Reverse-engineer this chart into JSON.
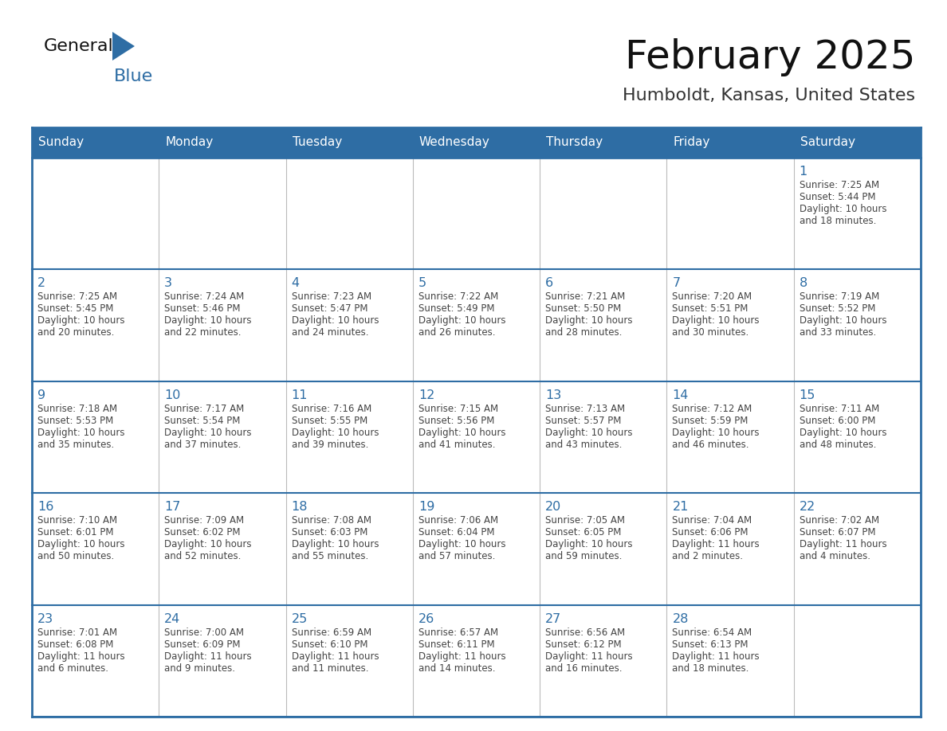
{
  "title": "February 2025",
  "subtitle": "Humboldt, Kansas, United States",
  "header_bg": "#2E6DA4",
  "header_text_color": "#FFFFFF",
  "cell_bg": "#FFFFFF",
  "day_number_color": "#2E6DA4",
  "cell_text_color": "#444444",
  "border_color": "#2E6DA4",
  "line_color_inner": "#CCCCCC",
  "days_of_week": [
    "Sunday",
    "Monday",
    "Tuesday",
    "Wednesday",
    "Thursday",
    "Friday",
    "Saturday"
  ],
  "weeks": [
    [
      {
        "day": null,
        "sunrise": null,
        "sunset": null,
        "daylight_line1": null,
        "daylight_line2": null
      },
      {
        "day": null,
        "sunrise": null,
        "sunset": null,
        "daylight_line1": null,
        "daylight_line2": null
      },
      {
        "day": null,
        "sunrise": null,
        "sunset": null,
        "daylight_line1": null,
        "daylight_line2": null
      },
      {
        "day": null,
        "sunrise": null,
        "sunset": null,
        "daylight_line1": null,
        "daylight_line2": null
      },
      {
        "day": null,
        "sunrise": null,
        "sunset": null,
        "daylight_line1": null,
        "daylight_line2": null
      },
      {
        "day": null,
        "sunrise": null,
        "sunset": null,
        "daylight_line1": null,
        "daylight_line2": null
      },
      {
        "day": "1",
        "sunrise": "Sunrise: 7:25 AM",
        "sunset": "Sunset: 5:44 PM",
        "daylight_line1": "Daylight: 10 hours",
        "daylight_line2": "and 18 minutes."
      }
    ],
    [
      {
        "day": "2",
        "sunrise": "Sunrise: 7:25 AM",
        "sunset": "Sunset: 5:45 PM",
        "daylight_line1": "Daylight: 10 hours",
        "daylight_line2": "and 20 minutes."
      },
      {
        "day": "3",
        "sunrise": "Sunrise: 7:24 AM",
        "sunset": "Sunset: 5:46 PM",
        "daylight_line1": "Daylight: 10 hours",
        "daylight_line2": "and 22 minutes."
      },
      {
        "day": "4",
        "sunrise": "Sunrise: 7:23 AM",
        "sunset": "Sunset: 5:47 PM",
        "daylight_line1": "Daylight: 10 hours",
        "daylight_line2": "and 24 minutes."
      },
      {
        "day": "5",
        "sunrise": "Sunrise: 7:22 AM",
        "sunset": "Sunset: 5:49 PM",
        "daylight_line1": "Daylight: 10 hours",
        "daylight_line2": "and 26 minutes."
      },
      {
        "day": "6",
        "sunrise": "Sunrise: 7:21 AM",
        "sunset": "Sunset: 5:50 PM",
        "daylight_line1": "Daylight: 10 hours",
        "daylight_line2": "and 28 minutes."
      },
      {
        "day": "7",
        "sunrise": "Sunrise: 7:20 AM",
        "sunset": "Sunset: 5:51 PM",
        "daylight_line1": "Daylight: 10 hours",
        "daylight_line2": "and 30 minutes."
      },
      {
        "day": "8",
        "sunrise": "Sunrise: 7:19 AM",
        "sunset": "Sunset: 5:52 PM",
        "daylight_line1": "Daylight: 10 hours",
        "daylight_line2": "and 33 minutes."
      }
    ],
    [
      {
        "day": "9",
        "sunrise": "Sunrise: 7:18 AM",
        "sunset": "Sunset: 5:53 PM",
        "daylight_line1": "Daylight: 10 hours",
        "daylight_line2": "and 35 minutes."
      },
      {
        "day": "10",
        "sunrise": "Sunrise: 7:17 AM",
        "sunset": "Sunset: 5:54 PM",
        "daylight_line1": "Daylight: 10 hours",
        "daylight_line2": "and 37 minutes."
      },
      {
        "day": "11",
        "sunrise": "Sunrise: 7:16 AM",
        "sunset": "Sunset: 5:55 PM",
        "daylight_line1": "Daylight: 10 hours",
        "daylight_line2": "and 39 minutes."
      },
      {
        "day": "12",
        "sunrise": "Sunrise: 7:15 AM",
        "sunset": "Sunset: 5:56 PM",
        "daylight_line1": "Daylight: 10 hours",
        "daylight_line2": "and 41 minutes."
      },
      {
        "day": "13",
        "sunrise": "Sunrise: 7:13 AM",
        "sunset": "Sunset: 5:57 PM",
        "daylight_line1": "Daylight: 10 hours",
        "daylight_line2": "and 43 minutes."
      },
      {
        "day": "14",
        "sunrise": "Sunrise: 7:12 AM",
        "sunset": "Sunset: 5:59 PM",
        "daylight_line1": "Daylight: 10 hours",
        "daylight_line2": "and 46 minutes."
      },
      {
        "day": "15",
        "sunrise": "Sunrise: 7:11 AM",
        "sunset": "Sunset: 6:00 PM",
        "daylight_line1": "Daylight: 10 hours",
        "daylight_line2": "and 48 minutes."
      }
    ],
    [
      {
        "day": "16",
        "sunrise": "Sunrise: 7:10 AM",
        "sunset": "Sunset: 6:01 PM",
        "daylight_line1": "Daylight: 10 hours",
        "daylight_line2": "and 50 minutes."
      },
      {
        "day": "17",
        "sunrise": "Sunrise: 7:09 AM",
        "sunset": "Sunset: 6:02 PM",
        "daylight_line1": "Daylight: 10 hours",
        "daylight_line2": "and 52 minutes."
      },
      {
        "day": "18",
        "sunrise": "Sunrise: 7:08 AM",
        "sunset": "Sunset: 6:03 PM",
        "daylight_line1": "Daylight: 10 hours",
        "daylight_line2": "and 55 minutes."
      },
      {
        "day": "19",
        "sunrise": "Sunrise: 7:06 AM",
        "sunset": "Sunset: 6:04 PM",
        "daylight_line1": "Daylight: 10 hours",
        "daylight_line2": "and 57 minutes."
      },
      {
        "day": "20",
        "sunrise": "Sunrise: 7:05 AM",
        "sunset": "Sunset: 6:05 PM",
        "daylight_line1": "Daylight: 10 hours",
        "daylight_line2": "and 59 minutes."
      },
      {
        "day": "21",
        "sunrise": "Sunrise: 7:04 AM",
        "sunset": "Sunset: 6:06 PM",
        "daylight_line1": "Daylight: 11 hours",
        "daylight_line2": "and 2 minutes."
      },
      {
        "day": "22",
        "sunrise": "Sunrise: 7:02 AM",
        "sunset": "Sunset: 6:07 PM",
        "daylight_line1": "Daylight: 11 hours",
        "daylight_line2": "and 4 minutes."
      }
    ],
    [
      {
        "day": "23",
        "sunrise": "Sunrise: 7:01 AM",
        "sunset": "Sunset: 6:08 PM",
        "daylight_line1": "Daylight: 11 hours",
        "daylight_line2": "and 6 minutes."
      },
      {
        "day": "24",
        "sunrise": "Sunrise: 7:00 AM",
        "sunset": "Sunset: 6:09 PM",
        "daylight_line1": "Daylight: 11 hours",
        "daylight_line2": "and 9 minutes."
      },
      {
        "day": "25",
        "sunrise": "Sunrise: 6:59 AM",
        "sunset": "Sunset: 6:10 PM",
        "daylight_line1": "Daylight: 11 hours",
        "daylight_line2": "and 11 minutes."
      },
      {
        "day": "26",
        "sunrise": "Sunrise: 6:57 AM",
        "sunset": "Sunset: 6:11 PM",
        "daylight_line1": "Daylight: 11 hours",
        "daylight_line2": "and 14 minutes."
      },
      {
        "day": "27",
        "sunrise": "Sunrise: 6:56 AM",
        "sunset": "Sunset: 6:12 PM",
        "daylight_line1": "Daylight: 11 hours",
        "daylight_line2": "and 16 minutes."
      },
      {
        "day": "28",
        "sunrise": "Sunrise: 6:54 AM",
        "sunset": "Sunset: 6:13 PM",
        "daylight_line1": "Daylight: 11 hours",
        "daylight_line2": "and 18 minutes."
      },
      {
        "day": null,
        "sunrise": null,
        "sunset": null,
        "daylight_line1": null,
        "daylight_line2": null
      }
    ]
  ]
}
